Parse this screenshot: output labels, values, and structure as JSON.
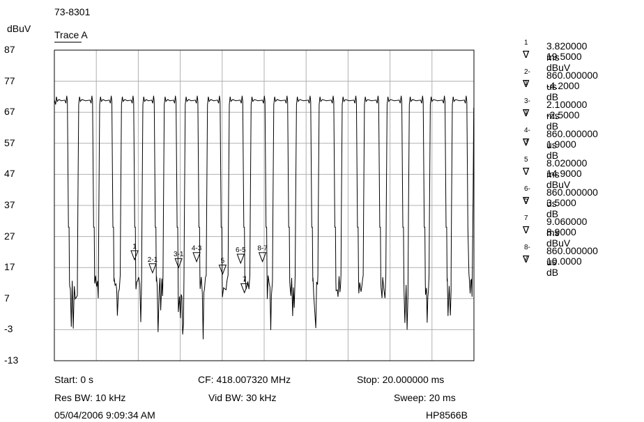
{
  "header": {
    "title": "73-8301",
    "unit": "dBuV",
    "trace": "Trace A"
  },
  "chart_data": {
    "type": "line",
    "ylim": [
      -13,
      87
    ],
    "xlim": [
      0,
      20
    ],
    "x_unit": "ms",
    "grid": true,
    "y_ticks": [
      "87",
      "77",
      "67",
      "57",
      "47",
      "37",
      "27",
      "17",
      "7",
      "-3",
      "-13"
    ],
    "pulse_rises_ms": [
      0.04,
      1.14,
      2.14,
      3.18,
      4.2,
      5.22,
      6.22,
      7.28,
      8.32,
      9.36,
      10.44,
      11.52,
      12.6,
      13.7,
      14.76,
      15.84,
      16.9,
      17.9,
      18.95
    ],
    "pulse_falls_ms": [
      0.62,
      1.82,
      2.74,
      3.78,
      4.76,
      5.8,
      6.84,
      7.9,
      8.98,
      10.04,
      11.12,
      12.22,
      13.32,
      14.4,
      15.46,
      16.56,
      17.58,
      18.62,
      19.66
    ],
    "pulse_high_dbuv": 70.5,
    "noise_floor_dbuv": 8.5,
    "markers_on_plot": [
      {
        "label": "1",
        "x_ms": 3.82,
        "y_dbuv": 19.5
      },
      {
        "label": "2-1",
        "x_ms": 4.68,
        "y_dbuv": 15.3
      },
      {
        "label": "3-1",
        "x_ms": 5.92,
        "y_dbuv": 17.0
      },
      {
        "label": "4-3",
        "x_ms": 6.78,
        "y_dbuv": 18.9
      },
      {
        "label": "5",
        "x_ms": 8.02,
        "y_dbuv": 14.9
      },
      {
        "label": "6-5",
        "x_ms": 8.88,
        "y_dbuv": 18.4
      },
      {
        "label": "7",
        "x_ms": 9.06,
        "y_dbuv": 8.9
      },
      {
        "label": "8-7",
        "x_ms": 9.92,
        "y_dbuv": 18.9
      }
    ]
  },
  "footer": {
    "start": "Start: 0 s",
    "cf": "CF: 418.007320 MHz",
    "stop": "Stop: 20.000000 ms",
    "res_bw": "Res BW: 10 kHz",
    "vid_bw": "Vid BW: 30 kHz",
    "sweep": "Sweep: 20 ms",
    "datetime": "05/04/2006 9:09:34 AM",
    "model": "HP8566B"
  },
  "marker_table": [
    {
      "id": "1",
      "time": "3.820000 ms",
      "value": "19.5000 dBuV"
    },
    {
      "id": "2-1",
      "time": "860.000000 us",
      "value": "-4.2000 dB"
    },
    {
      "id": "3-1",
      "time": "2.100000 ms",
      "value": "-2.5000 dB"
    },
    {
      "id": "4-3",
      "time": "860.000000 us",
      "value": "1.9000 dB"
    },
    {
      "id": "5",
      "time": "8.020000 ms",
      "value": "14.9000 dBuV"
    },
    {
      "id": "6-5",
      "time": "860.000000 us",
      "value": "3.5000 dB"
    },
    {
      "id": "7",
      "time": "9.060000 ms",
      "value": "8.9000 dBuV"
    },
    {
      "id": "8-7",
      "time": "860.000000 us",
      "value": "10.0000 dB"
    }
  ],
  "marker_symbol": "∇"
}
